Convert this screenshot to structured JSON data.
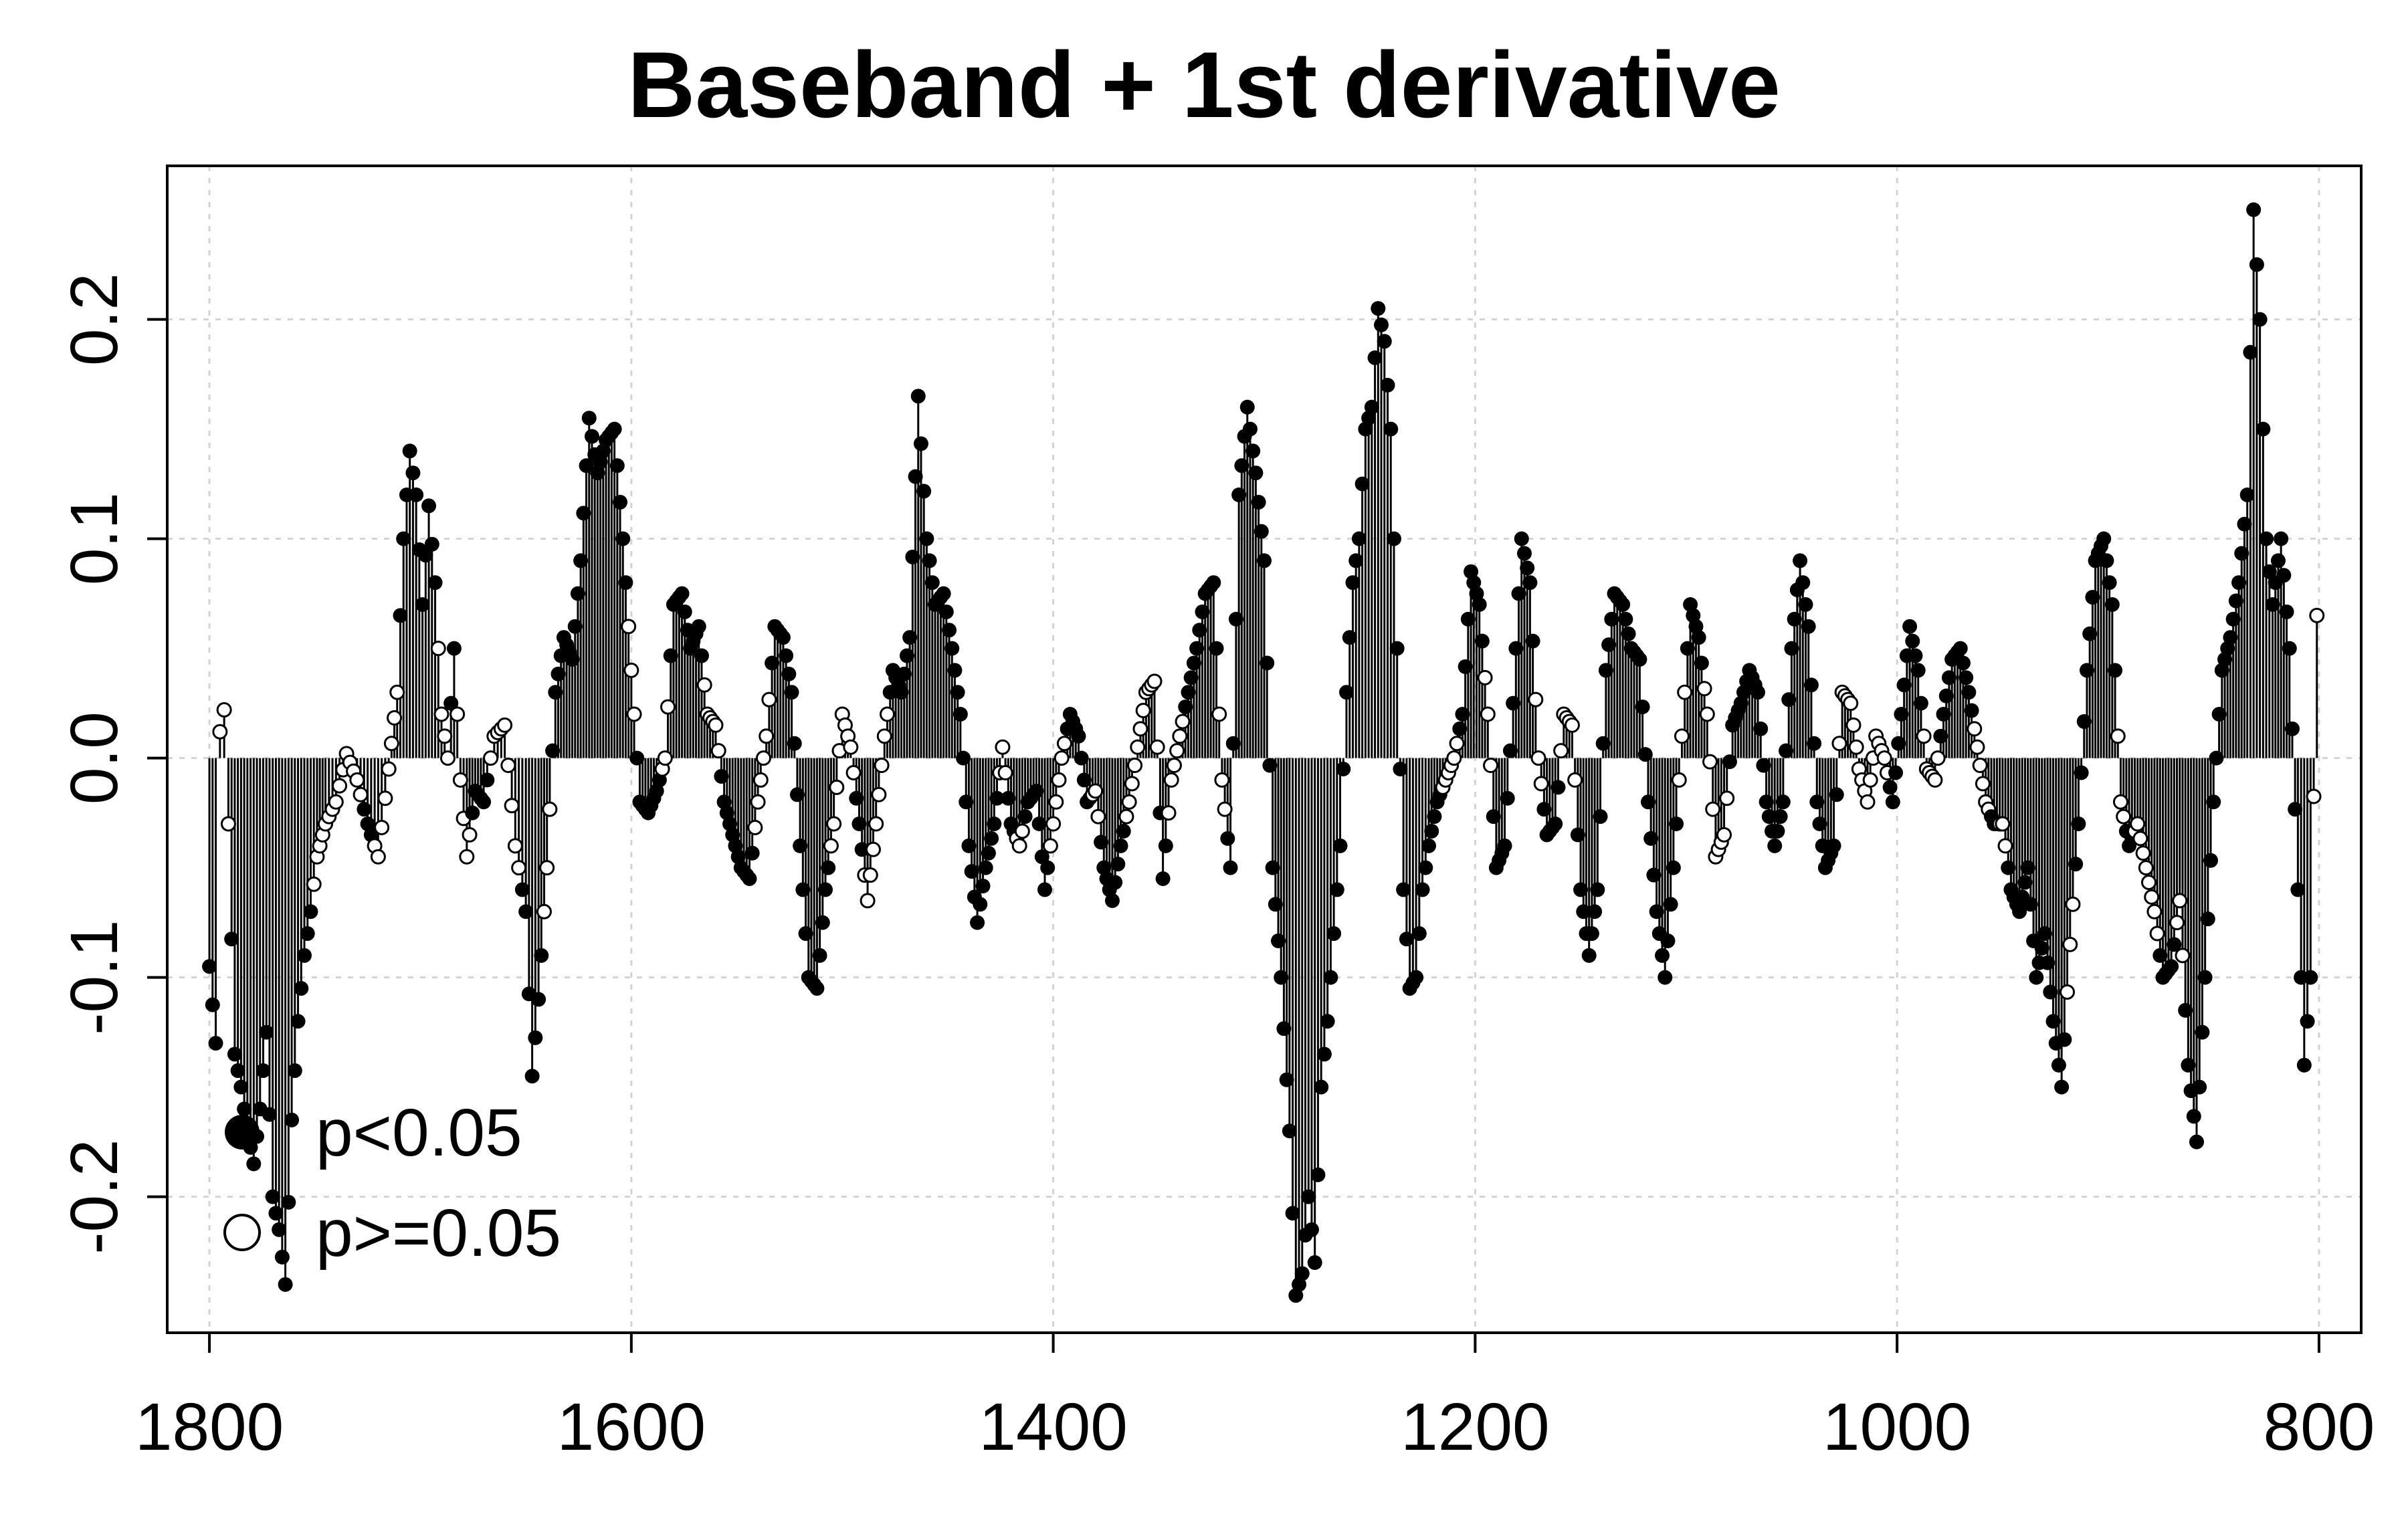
{
  "chart_data": {
    "type": "scatter",
    "title": "Baseband + 1st derivative",
    "xlabel": "",
    "ylabel": "",
    "xlim": [
      1820,
      780
    ],
    "ylim": [
      -0.262,
      0.27
    ],
    "x_reversed": true,
    "x_ticks": [
      1800,
      1600,
      1400,
      1200,
      1000,
      800
    ],
    "y_ticks": [
      -0.2,
      -0.1,
      0.0,
      0.1,
      0.2
    ],
    "y_tick_labels": [
      "-0.2",
      "-0.1",
      "0.0",
      "0.1",
      "0.2"
    ],
    "grid": true,
    "legend_position": "bottom-left",
    "legend": [
      {
        "label": "p<0.05",
        "marker": "filled-circle"
      },
      {
        "label": "p>=0.05",
        "marker": "open-circle"
      }
    ],
    "marker_color": "#000000",
    "profile": [
      [
        1800,
        -0.095,
        1
      ],
      [
        1797,
        -0.13,
        1
      ],
      [
        1795,
        0.012,
        0
      ],
      [
        1793,
        0.022,
        0
      ],
      [
        1791,
        -0.03,
        0
      ],
      [
        1788,
        -0.135,
        1
      ],
      [
        1785,
        -0.15,
        1
      ],
      [
        1782,
        -0.17,
        1
      ],
      [
        1779,
        -0.185,
        1
      ],
      [
        1776,
        -0.16,
        1
      ],
      [
        1773,
        -0.125,
        1
      ],
      [
        1770,
        -0.2,
        1
      ],
      [
        1767,
        -0.215,
        1
      ],
      [
        1764,
        -0.24,
        1
      ],
      [
        1761,
        -0.165,
        1
      ],
      [
        1758,
        -0.12,
        1
      ],
      [
        1755,
        -0.09,
        1
      ],
      [
        1752,
        -0.07,
        1
      ],
      [
        1749,
        -0.045,
        0
      ],
      [
        1745,
        -0.03,
        0
      ],
      [
        1740,
        -0.02,
        0
      ],
      [
        1735,
        0.002,
        0
      ],
      [
        1730,
        -0.01,
        0
      ],
      [
        1725,
        -0.03,
        1
      ],
      [
        1720,
        -0.045,
        0
      ],
      [
        1715,
        -0.005,
        0
      ],
      [
        1711,
        0.03,
        0
      ],
      [
        1708,
        0.1,
        1
      ],
      [
        1705,
        0.14,
        1
      ],
      [
        1702,
        0.12,
        1
      ],
      [
        1699,
        0.07,
        1
      ],
      [
        1696,
        0.115,
        1
      ],
      [
        1693,
        0.08,
        1
      ],
      [
        1690,
        0.02,
        0
      ],
      [
        1687,
        0.0,
        0
      ],
      [
        1684,
        0.05,
        1
      ],
      [
        1681,
        -0.01,
        0
      ],
      [
        1678,
        -0.045,
        0
      ],
      [
        1674,
        -0.015,
        1
      ],
      [
        1670,
        -0.02,
        1
      ],
      [
        1665,
        0.01,
        0
      ],
      [
        1660,
        0.015,
        0
      ],
      [
        1655,
        -0.04,
        0
      ],
      [
        1650,
        -0.07,
        1
      ],
      [
        1647,
        -0.145,
        1
      ],
      [
        1644,
        -0.11,
        1
      ],
      [
        1640,
        -0.05,
        0
      ],
      [
        1636,
        0.03,
        1
      ],
      [
        1632,
        0.055,
        1
      ],
      [
        1628,
        0.045,
        1
      ],
      [
        1624,
        0.09,
        1
      ],
      [
        1620,
        0.155,
        1
      ],
      [
        1616,
        0.13,
        1
      ],
      [
        1612,
        0.145,
        1
      ],
      [
        1608,
        0.15,
        1
      ],
      [
        1604,
        0.1,
        1
      ],
      [
        1600,
        0.04,
        0
      ],
      [
        1596,
        -0.02,
        1
      ],
      [
        1592,
        -0.025,
        1
      ],
      [
        1588,
        -0.015,
        1
      ],
      [
        1584,
        0.0,
        0
      ],
      [
        1580,
        0.07,
        1
      ],
      [
        1576,
        0.075,
        1
      ],
      [
        1572,
        0.05,
        1
      ],
      [
        1568,
        0.06,
        1
      ],
      [
        1564,
        0.02,
        0
      ],
      [
        1560,
        0.015,
        0
      ],
      [
        1556,
        -0.02,
        1
      ],
      [
        1552,
        -0.035,
        1
      ],
      [
        1548,
        -0.05,
        1
      ],
      [
        1544,
        -0.055,
        1
      ],
      [
        1540,
        -0.02,
        0
      ],
      [
        1536,
        0.01,
        0
      ],
      [
        1532,
        0.06,
        1
      ],
      [
        1528,
        0.055,
        1
      ],
      [
        1524,
        0.03,
        1
      ],
      [
        1520,
        -0.04,
        1
      ],
      [
        1516,
        -0.1,
        1
      ],
      [
        1512,
        -0.105,
        1
      ],
      [
        1508,
        -0.06,
        1
      ],
      [
        1504,
        -0.03,
        0
      ],
      [
        1500,
        0.02,
        0
      ],
      [
        1496,
        0.005,
        0
      ],
      [
        1492,
        -0.03,
        1
      ],
      [
        1488,
        -0.065,
        0
      ],
      [
        1484,
        -0.03,
        0
      ],
      [
        1480,
        0.01,
        0
      ],
      [
        1476,
        0.04,
        1
      ],
      [
        1472,
        0.03,
        1
      ],
      [
        1468,
        0.055,
        1
      ],
      [
        1464,
        0.165,
        1
      ],
      [
        1460,
        0.1,
        1
      ],
      [
        1456,
        0.07,
        1
      ],
      [
        1452,
        0.075,
        1
      ],
      [
        1448,
        0.05,
        1
      ],
      [
        1444,
        0.02,
        1
      ],
      [
        1440,
        -0.04,
        1
      ],
      [
        1436,
        -0.075,
        1
      ],
      [
        1432,
        -0.05,
        1
      ],
      [
        1428,
        -0.03,
        1
      ],
      [
        1424,
        0.005,
        0
      ],
      [
        1420,
        -0.03,
        1
      ],
      [
        1416,
        -0.04,
        0
      ],
      [
        1412,
        -0.02,
        1
      ],
      [
        1408,
        -0.015,
        1
      ],
      [
        1404,
        -0.06,
        1
      ],
      [
        1400,
        -0.03,
        0
      ],
      [
        1396,
        0.0,
        0
      ],
      [
        1392,
        0.02,
        1
      ],
      [
        1388,
        0.01,
        1
      ],
      [
        1384,
        -0.02,
        1
      ],
      [
        1380,
        -0.015,
        0
      ],
      [
        1376,
        -0.05,
        1
      ],
      [
        1372,
        -0.065,
        1
      ],
      [
        1368,
        -0.04,
        1
      ],
      [
        1364,
        -0.02,
        0
      ],
      [
        1360,
        0.005,
        0
      ],
      [
        1356,
        0.03,
        0
      ],
      [
        1352,
        0.035,
        0
      ],
      [
        1348,
        -0.055,
        1
      ],
      [
        1344,
        -0.01,
        0
      ],
      [
        1340,
        0.01,
        0
      ],
      [
        1336,
        0.03,
        1
      ],
      [
        1332,
        0.05,
        1
      ],
      [
        1328,
        0.075,
        1
      ],
      [
        1324,
        0.08,
        1
      ],
      [
        1320,
        -0.01,
        0
      ],
      [
        1316,
        -0.05,
        1
      ],
      [
        1312,
        0.12,
        1
      ],
      [
        1308,
        0.16,
        1
      ],
      [
        1304,
        0.13,
        1
      ],
      [
        1300,
        0.09,
        1
      ],
      [
        1296,
        -0.05,
        1
      ],
      [
        1292,
        -0.1,
        1
      ],
      [
        1288,
        -0.17,
        1
      ],
      [
        1285,
        -0.245,
        1
      ],
      [
        1282,
        -0.235,
        1
      ],
      [
        1279,
        -0.2,
        1
      ],
      [
        1276,
        -0.23,
        1
      ],
      [
        1273,
        -0.15,
        1
      ],
      [
        1270,
        -0.12,
        1
      ],
      [
        1267,
        -0.08,
        1
      ],
      [
        1264,
        -0.04,
        1
      ],
      [
        1261,
        0.03,
        1
      ],
      [
        1258,
        0.08,
        1
      ],
      [
        1255,
        0.1,
        1
      ],
      [
        1252,
        0.15,
        1
      ],
      [
        1249,
        0.16,
        1
      ],
      [
        1246,
        0.205,
        1
      ],
      [
        1243,
        0.19,
        1
      ],
      [
        1240,
        0.15,
        1
      ],
      [
        1237,
        0.05,
        1
      ],
      [
        1234,
        -0.06,
        1
      ],
      [
        1231,
        -0.105,
        1
      ],
      [
        1228,
        -0.1,
        1
      ],
      [
        1225,
        -0.06,
        1
      ],
      [
        1222,
        -0.04,
        1
      ],
      [
        1218,
        -0.02,
        1
      ],
      [
        1214,
        -0.01,
        0
      ],
      [
        1210,
        0.0,
        0
      ],
      [
        1206,
        0.02,
        1
      ],
      [
        1202,
        0.085,
        1
      ],
      [
        1198,
        0.07,
        1
      ],
      [
        1194,
        0.02,
        0
      ],
      [
        1190,
        -0.05,
        1
      ],
      [
        1186,
        -0.04,
        1
      ],
      [
        1182,
        0.025,
        1
      ],
      [
        1178,
        0.1,
        1
      ],
      [
        1174,
        0.08,
        1
      ],
      [
        1170,
        0.0,
        0
      ],
      [
        1166,
        -0.035,
        1
      ],
      [
        1162,
        -0.03,
        1
      ],
      [
        1158,
        0.02,
        0
      ],
      [
        1154,
        0.015,
        0
      ],
      [
        1150,
        -0.06,
        1
      ],
      [
        1146,
        -0.09,
        1
      ],
      [
        1142,
        -0.06,
        1
      ],
      [
        1138,
        0.04,
        1
      ],
      [
        1134,
        0.075,
        1
      ],
      [
        1130,
        0.07,
        1
      ],
      [
        1126,
        0.05,
        1
      ],
      [
        1122,
        0.045,
        1
      ],
      [
        1118,
        -0.02,
        1
      ],
      [
        1114,
        -0.07,
        1
      ],
      [
        1110,
        -0.1,
        1
      ],
      [
        1106,
        -0.05,
        1
      ],
      [
        1102,
        0.01,
        0
      ],
      [
        1098,
        0.07,
        1
      ],
      [
        1094,
        0.055,
        1
      ],
      [
        1090,
        0.02,
        0
      ],
      [
        1086,
        -0.045,
        0
      ],
      [
        1082,
        -0.035,
        0
      ],
      [
        1078,
        0.015,
        1
      ],
      [
        1074,
        0.025,
        1
      ],
      [
        1070,
        0.04,
        1
      ],
      [
        1066,
        0.03,
        1
      ],
      [
        1062,
        -0.02,
        1
      ],
      [
        1058,
        -0.04,
        1
      ],
      [
        1054,
        -0.02,
        1
      ],
      [
        1050,
        0.05,
        1
      ],
      [
        1046,
        0.09,
        1
      ],
      [
        1042,
        0.06,
        1
      ],
      [
        1038,
        -0.02,
        1
      ],
      [
        1034,
        -0.05,
        1
      ],
      [
        1030,
        -0.04,
        1
      ],
      [
        1026,
        0.03,
        0
      ],
      [
        1022,
        0.025,
        0
      ],
      [
        1018,
        -0.005,
        0
      ],
      [
        1014,
        -0.02,
        0
      ],
      [
        1010,
        0.01,
        0
      ],
      [
        1006,
        0.0,
        0
      ],
      [
        1002,
        -0.02,
        1
      ],
      [
        998,
        0.02,
        1
      ],
      [
        994,
        0.06,
        1
      ],
      [
        990,
        0.04,
        1
      ],
      [
        986,
        -0.005,
        0
      ],
      [
        982,
        -0.01,
        0
      ],
      [
        978,
        0.02,
        1
      ],
      [
        974,
        0.045,
        1
      ],
      [
        970,
        0.05,
        1
      ],
      [
        966,
        0.03,
        1
      ],
      [
        962,
        0.005,
        0
      ],
      [
        958,
        -0.02,
        0
      ],
      [
        954,
        -0.03,
        1
      ],
      [
        950,
        -0.03,
        0
      ],
      [
        946,
        -0.06,
        1
      ],
      [
        942,
        -0.07,
        1
      ],
      [
        938,
        -0.05,
        1
      ],
      [
        934,
        -0.1,
        1
      ],
      [
        930,
        -0.08,
        1
      ],
      [
        926,
        -0.12,
        1
      ],
      [
        922,
        -0.15,
        1
      ],
      [
        918,
        -0.085,
        0
      ],
      [
        914,
        -0.03,
        1
      ],
      [
        910,
        0.04,
        1
      ],
      [
        906,
        0.09,
        1
      ],
      [
        902,
        0.1,
        1
      ],
      [
        898,
        0.07,
        1
      ],
      [
        894,
        -0.02,
        0
      ],
      [
        890,
        -0.04,
        1
      ],
      [
        886,
        -0.03,
        0
      ],
      [
        882,
        -0.05,
        0
      ],
      [
        878,
        -0.07,
        0
      ],
      [
        874,
        -0.1,
        1
      ],
      [
        870,
        -0.095,
        1
      ],
      [
        866,
        -0.065,
        0
      ],
      [
        862,
        -0.14,
        1
      ],
      [
        858,
        -0.175,
        1
      ],
      [
        854,
        -0.1,
        1
      ],
      [
        850,
        -0.02,
        1
      ],
      [
        846,
        0.04,
        1
      ],
      [
        842,
        0.055,
        1
      ],
      [
        838,
        0.08,
        1
      ],
      [
        834,
        0.12,
        1
      ],
      [
        831,
        0.25,
        1
      ],
      [
        828,
        0.2,
        1
      ],
      [
        825,
        0.1,
        1
      ],
      [
        822,
        0.07,
        1
      ],
      [
        818,
        0.1,
        1
      ],
      [
        814,
        0.05,
        1
      ],
      [
        810,
        -0.06,
        1
      ],
      [
        807,
        -0.14,
        1
      ],
      [
        804,
        -0.1,
        1
      ],
      [
        801,
        0.065,
        0
      ]
    ]
  },
  "title": "Baseband + 1st derivative",
  "axes": {
    "x_tick_labels": [
      "1800",
      "1600",
      "1400",
      "1200",
      "1000",
      "800"
    ],
    "y_tick_labels": [
      "-0.2",
      "-0.1",
      "0.0",
      "0.1",
      "0.2"
    ]
  },
  "legend": {
    "sig_label": "p<0.05",
    "nonsig_label": "p>=0.05"
  }
}
